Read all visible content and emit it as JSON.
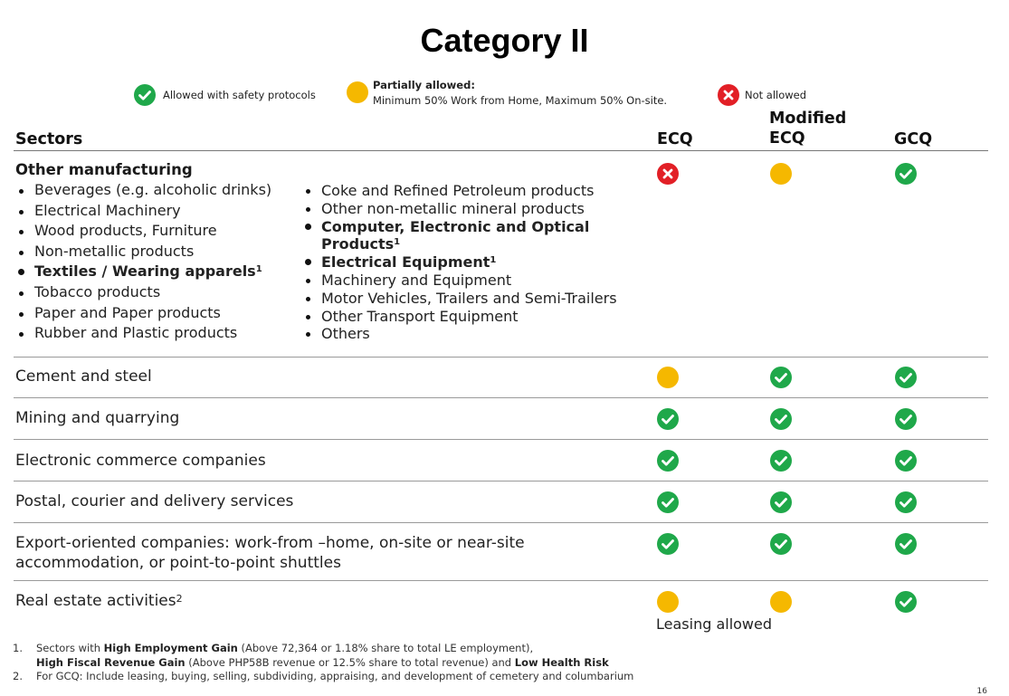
{
  "title": "Category II",
  "legend": {
    "allowed": "Allowed with safety protocols",
    "partial_title": "Partially allowed:",
    "partial_desc": "Minimum 50% Work from Home,  Maximum 50% On-site.",
    "not_allowed": "Not allowed"
  },
  "headers": {
    "sectors": "Sectors",
    "ecq": "ECQ",
    "mecq_line1": "Modified",
    "mecq_line2": "ECQ",
    "gcq": "GCQ"
  },
  "manufacturing": {
    "title": "Other manufacturing",
    "left_items": [
      {
        "text": "Beverages (e.g. alcoholic drinks)",
        "sup": ""
      },
      {
        "text": "Electrical Machinery",
        "sup": ""
      },
      {
        "text": "Wood products, Furniture",
        "sup": ""
      },
      {
        "text": "Non-metallic products",
        "sup": ""
      },
      {
        "text": "Textiles / Wearing apparels",
        "sup": "1"
      },
      {
        "text": "Tobacco products",
        "sup": ""
      },
      {
        "text": "Paper and Paper products",
        "sup": ""
      },
      {
        "text": "Rubber and Plastic products",
        "sup": ""
      }
    ],
    "right_items": [
      {
        "text": "Coke and Refined Petroleum products",
        "sup": ""
      },
      {
        "text": "Other non-metallic mineral products",
        "sup": ""
      },
      {
        "text": "Computer, Electronic and Optical Products",
        "sup": "1"
      },
      {
        "text": "Electrical Equipment",
        "sup": "1"
      },
      {
        "text": "Machinery and Equipment",
        "sup": ""
      },
      {
        "text": "Motor Vehicles, Trailers and Semi-Trailers",
        "sup": ""
      },
      {
        "text": "Other Transport Equipment",
        "sup": ""
      },
      {
        "text": "Others",
        "sup": ""
      }
    ],
    "status": [
      "not-allowed",
      "partial",
      "allowed"
    ]
  },
  "rows": [
    {
      "label": "Cement and steel",
      "status": [
        "partial",
        "allowed",
        "allowed"
      ]
    },
    {
      "label": "Mining and quarrying",
      "status": [
        "allowed",
        "allowed",
        "allowed"
      ]
    },
    {
      "label": "Electronic commerce companies",
      "status": [
        "allowed",
        "allowed",
        "allowed"
      ]
    },
    {
      "label": "Postal, courier and delivery services",
      "status": [
        "allowed",
        "allowed",
        "allowed"
      ]
    },
    {
      "label_line1": "Export-oriented companies: work-from –home, on-site or near-site",
      "label_line2": "accommodation, or point-to-point shuttles",
      "status": [
        "allowed",
        "allowed",
        "allowed"
      ]
    },
    {
      "label": "Real estate activities",
      "sup": "2",
      "status": [
        "partial",
        "partial",
        "allowed"
      ],
      "note": "Leasing allowed"
    }
  ],
  "footnotes": {
    "fn1_num": "1.",
    "fn1_a": "Sectors with ",
    "fn1_b": "High Employment Gain",
    "fn1_c": " (Above 72,364 or 1.18% share to total LE employment),",
    "fn1_d": "High Fiscal Revenue Gain",
    "fn1_e": " (Above PHP58B revenue or 12.5% share to total revenue) and  ",
    "fn1_f": "Low Health Risk",
    "fn2_num": "2.",
    "fn2": "For GCQ: Include leasing, buying, selling, subdividing, appraising, and development of cemetery and columbarium"
  },
  "page_number": "16",
  "colors": {
    "allowed": "#1fa84a",
    "partial": "#f5b800",
    "not_allowed": "#e21f26"
  }
}
